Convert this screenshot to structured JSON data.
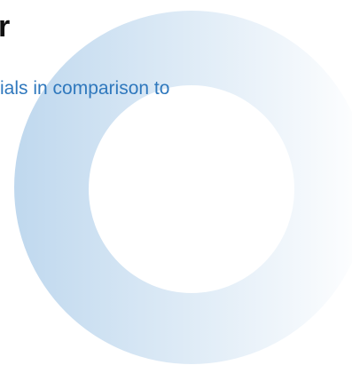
{
  "content": {
    "heading_fragment": "r",
    "subtitle_fragment": "ials in comparison to"
  },
  "colors": {
    "heading_text": "#111111",
    "subtitle_text": "#2f78bd",
    "ring_gradient_start": "#bfd8ee",
    "ring_gradient_end": "#ffffff"
  }
}
